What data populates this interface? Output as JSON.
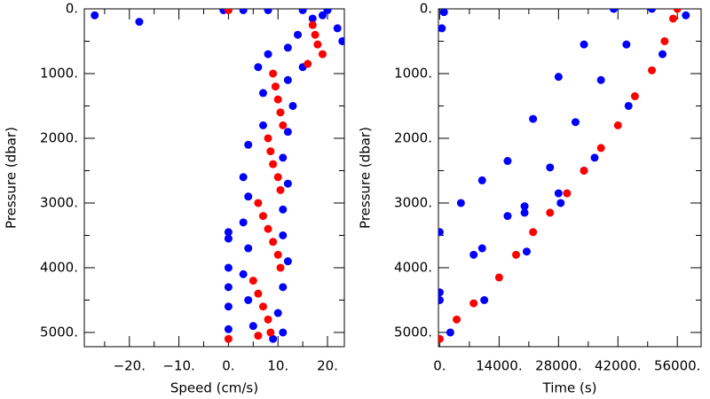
{
  "chart_data": [
    {
      "type": "scatter",
      "xlabel": "Speed (cm/s)",
      "ylabel": "Pressure (dbar)",
      "xlim": [
        -29.1,
        23.4
      ],
      "ylim": [
        0,
        5220
      ],
      "y_inverted": true,
      "xticks": [
        {
          "value": -20,
          "label": "−20."
        },
        {
          "value": -10,
          "label": "−10."
        },
        {
          "value": 0,
          "label": "0."
        },
        {
          "value": 10,
          "label": "10."
        },
        {
          "value": 20,
          "label": "20."
        }
      ],
      "xminorticks": [
        -25,
        -15,
        -5,
        5,
        15
      ],
      "yticks": [
        {
          "value": 0,
          "label": "0."
        },
        {
          "value": 1000,
          "label": "1000."
        },
        {
          "value": 2000,
          "label": "2000."
        },
        {
          "value": 3000,
          "label": "3000."
        },
        {
          "value": 4000,
          "label": "4000."
        },
        {
          "value": 5000,
          "label": "5000."
        }
      ],
      "yminorticks": [
        500,
        1500,
        2500,
        3500,
        4500
      ],
      "series": [
        {
          "color": "#0000ff",
          "x": [
            -27,
            -18,
            -1,
            3,
            8,
            15,
            20,
            22,
            23,
            19,
            12,
            14,
            6,
            15,
            7,
            13,
            7,
            12,
            4,
            11,
            3,
            12,
            4,
            11,
            3,
            11,
            4,
            12,
            3,
            11,
            4,
            10,
            5,
            11,
            0,
            0,
            0,
            0,
            0,
            0,
            9,
            12,
            8,
            17
          ],
          "values": [
            100,
            200,
            20,
            20,
            20,
            20,
            20,
            300,
            500,
            100,
            600,
            400,
            900,
            900,
            1300,
            1500,
            1800,
            1900,
            2100,
            2300,
            2600,
            2700,
            2900,
            3100,
            3300,
            3500,
            3700,
            3900,
            4100,
            4300,
            4500,
            4700,
            4900,
            5000,
            3450,
            3550,
            4000,
            4300,
            4600,
            4950,
            5100,
            1100,
            700,
            150
          ]
        },
        {
          "color": "#ff0000",
          "x": [
            0,
            17,
            17.5,
            18,
            19,
            16,
            9,
            9.5,
            10,
            10.5,
            11,
            8,
            8.5,
            9,
            10,
            10.5,
            6,
            7,
            8,
            9,
            10,
            10.5,
            5,
            6,
            7,
            8,
            8.5,
            0,
            6
          ],
          "values": [
            20,
            250,
            400,
            550,
            700,
            850,
            1000,
            1200,
            1400,
            1600,
            1800,
            2000,
            2200,
            2400,
            2600,
            2800,
            3000,
            3200,
            3400,
            3600,
            3800,
            4000,
            4200,
            4400,
            4600,
            4800,
            5000,
            5100,
            5050
          ]
        }
      ]
    },
    {
      "type": "scatter",
      "xlabel": "Time (s)",
      "ylabel": "Pressure (dbar)",
      "xlim": [
        -300,
        61600
      ],
      "ylim": [
        0,
        5220
      ],
      "y_inverted": true,
      "xticks": [
        {
          "value": 0,
          "label": "0."
        },
        {
          "value": 14000,
          "label": "14000."
        },
        {
          "value": 28000,
          "label": "28000."
        },
        {
          "value": 42000,
          "label": "42000."
        },
        {
          "value": 56000,
          "label": "56000."
        }
      ],
      "xminorticks": [
        7000,
        21000,
        35000,
        49000
      ],
      "yticks": [
        {
          "value": 0,
          "label": "0."
        },
        {
          "value": 1000,
          "label": "1000."
        },
        {
          "value": 2000,
          "label": "2000."
        },
        {
          "value": 3000,
          "label": "3000."
        },
        {
          "value": 4000,
          "label": "4000."
        },
        {
          "value": 5000,
          "label": "5000."
        }
      ],
      "yminorticks": [
        500,
        1500,
        2500,
        3500,
        4500
      ],
      "series": [
        {
          "color": "#0000ff",
          "x": [
            0,
            5000,
            10000,
            16000,
            22000,
            28000,
            34000,
            41000,
            0,
            8000,
            16000,
            20000,
            26000,
            32000,
            38000,
            44000,
            50000,
            0,
            10000,
            20000,
            28000,
            34000,
            2500,
            10500,
            20500,
            28500,
            36500,
            44500,
            52500,
            58000,
            1000,
            500
          ],
          "values": [
            3450,
            3000,
            2650,
            2350,
            1700,
            1050,
            550,
            0,
            4500,
            3800,
            3200,
            3050,
            2450,
            1750,
            1100,
            550,
            0,
            4380,
            3700,
            3150,
            2850,
            2500,
            5000,
            4500,
            3750,
            3000,
            2300,
            1500,
            700,
            100,
            50,
            300
          ]
        },
        {
          "color": "#ff0000",
          "x": [
            0,
            4000,
            8000,
            14000,
            18000,
            22000,
            26000,
            30000,
            34000,
            38000,
            42000,
            46000,
            50000,
            53000,
            55000,
            56000
          ],
          "values": [
            5100,
            4800,
            4550,
            4150,
            3800,
            3450,
            3150,
            2850,
            2500,
            2150,
            1800,
            1350,
            950,
            500,
            150,
            0
          ]
        }
      ]
    }
  ]
}
